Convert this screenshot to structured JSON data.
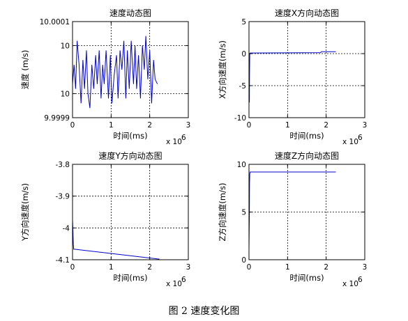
{
  "caption": "图 2  速度变化图",
  "chart_data": [
    {
      "type": "line",
      "title": "速度动态图",
      "xlabel": "时间(ms)",
      "ylabel": "速度 (m/s)",
      "x_multiplier_label": "x 10",
      "x_multiplier_exp": "6",
      "xlim": [
        0,
        3
      ],
      "ylim": [
        9.9999,
        10.0001
      ],
      "xticks": [
        0,
        1,
        2,
        3
      ],
      "xtick_labels": [
        "0",
        "1",
        "2",
        "3"
      ],
      "yticks": [
        10.0001,
        10.00005,
        9.99995,
        9.9999
      ],
      "ytick_labels": [
        "10.0001",
        "10",
        "10",
        "9.9999"
      ],
      "grid": true,
      "color": "#0000cc",
      "series": [
        {
          "x": [
            0.0,
            0.04,
            0.08,
            0.12,
            0.17,
            0.22,
            0.27,
            0.31,
            0.36,
            0.4,
            0.45,
            0.5,
            0.55,
            0.6,
            0.64,
            0.69,
            0.74,
            0.78,
            0.82,
            0.87,
            0.93,
            0.98,
            1.02,
            1.08,
            1.14,
            1.18,
            1.23,
            1.28,
            1.33,
            1.38,
            1.42,
            1.47,
            1.52,
            1.58,
            1.62,
            1.66,
            1.71,
            1.76,
            1.81,
            1.86,
            1.9,
            1.95,
            2.0,
            2.05,
            2.1,
            2.14,
            2.2
          ],
          "y": [
            9.99997,
            10.00001,
            9.99996,
            10.00006,
            10.00001,
            9.99993,
            10.00002,
            9.99996,
            10.00004,
            9.99995,
            9.99992,
            10.00001,
            9.99996,
            10.00003,
            9.99997,
            10.00004,
            9.99994,
            10.00001,
            9.99997,
            10.00004,
            9.99994,
            10.00003,
            9.99993,
            9.99999,
            10.00003,
            9.99994,
            10.00004,
            10.0,
            10.00006,
            9.99994,
            10.00004,
            9.99996,
            10.00006,
            9.99997,
            10.00005,
            9.99996,
            10.00003,
            9.99994,
            10.00005,
            10.0,
            10.00007,
            9.99998,
            10.00004,
            9.99993,
            10.00002,
            9.99998,
            9.99997
          ]
        }
      ]
    },
    {
      "type": "line",
      "title": "速度X方向动态图",
      "xlabel": "时间(ms)",
      "ylabel": "X方向速度(m/s)",
      "x_multiplier_label": "x 10",
      "x_multiplier_exp": "6",
      "xlim": [
        0,
        3
      ],
      "ylim": [
        -10,
        5
      ],
      "xticks": [
        0,
        1,
        2,
        3
      ],
      "xtick_labels": [
        "0",
        "1",
        "2",
        "3"
      ],
      "yticks": [
        5,
        0,
        -5,
        -10
      ],
      "ytick_labels": [
        "5",
        "0",
        "-5",
        "-10"
      ],
      "grid": true,
      "color": "#0000cc",
      "series": [
        {
          "x": [
            0.0,
            0.01,
            0.015,
            0.02,
            0.03,
            0.05,
            1.85,
            1.88,
            2.25
          ],
          "y": [
            -7.7,
            -7.5,
            -3.0,
            0.0,
            0.1,
            0.1,
            0.15,
            0.3,
            0.3
          ]
        }
      ]
    },
    {
      "type": "line",
      "title": "速度Y方向动态图",
      "xlabel": "时间(ms)",
      "ylabel": "Y方向速度(m/s)",
      "x_multiplier_label": "x 10",
      "x_multiplier_exp": "6",
      "xlim": [
        0,
        3
      ],
      "ylim": [
        -4.1,
        -3.8
      ],
      "xticks": [
        0,
        1,
        2,
        3
      ],
      "xtick_labels": [
        "0",
        "1",
        "2",
        "3"
      ],
      "yticks": [
        -3.8,
        -3.9,
        -4,
        -4.1
      ],
      "ytick_labels": [
        "-3.8",
        "-3.9",
        "-4",
        "-4.1"
      ],
      "grid": true,
      "color": "#0000cc",
      "series": [
        {
          "x": [
            0.0,
            0.01,
            0.02,
            0.03,
            0.05,
            2.25
          ],
          "y": [
            -3.975,
            -4.01,
            -4.05,
            -4.067,
            -4.067,
            -4.098
          ]
        }
      ]
    },
    {
      "type": "line",
      "title": "速度Z方向动态图",
      "xlabel": "时间(ms)",
      "ylabel": "Z方向速度(m/s)",
      "x_multiplier_label": "x 10",
      "x_multiplier_exp": "6",
      "xlim": [
        0,
        3
      ],
      "ylim": [
        0,
        10
      ],
      "xticks": [
        0,
        1,
        2,
        3
      ],
      "xtick_labels": [
        "0",
        "1",
        "2",
        "3"
      ],
      "yticks": [
        10,
        5,
        0
      ],
      "ytick_labels": [
        "10",
        "5",
        "0"
      ],
      "grid": true,
      "color": "#0000cc",
      "series": [
        {
          "x": [
            0.0,
            0.01,
            0.015,
            0.02,
            0.03,
            0.05,
            2.25
          ],
          "y": [
            1.2,
            5.0,
            8.0,
            9.0,
            9.2,
            9.2,
            9.2
          ]
        }
      ]
    }
  ]
}
